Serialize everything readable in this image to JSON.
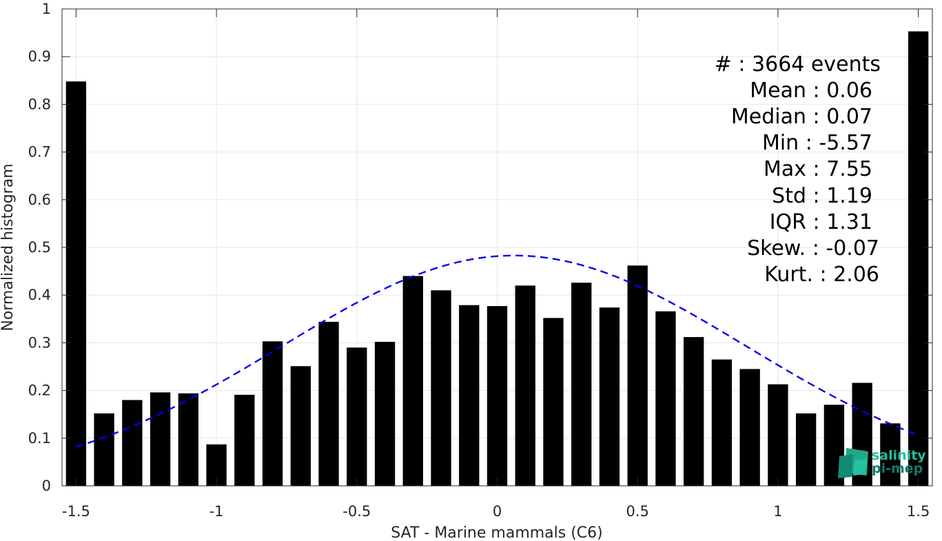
{
  "chart_data": {
    "type": "bar",
    "xlabel": "SAT - Marine mammals (C6)",
    "ylabel": "Normalized histogram",
    "xlim": [
      -1.55,
      1.55
    ],
    "ylim": [
      0,
      1
    ],
    "grid": true,
    "xticks": [
      -1.5,
      -1,
      -0.5,
      0,
      0.5,
      1,
      1.5
    ],
    "xtick_labels": [
      "-1.5",
      "-1",
      "-0.5",
      "0",
      "0.5",
      "1",
      "1.5"
    ],
    "yticks": [
      0,
      0.1,
      0.2,
      0.3,
      0.4,
      0.5,
      0.6,
      0.7,
      0.8,
      0.9,
      1
    ],
    "ytick_labels": [
      "0",
      "0.1",
      "0.2",
      "0.3",
      "0.4",
      "0.5",
      "0.6",
      "0.7",
      "0.8",
      "0.9",
      "1"
    ],
    "bar_color": "#000000",
    "x": [
      -1.5,
      -1.4,
      -1.3,
      -1.2,
      -1.1,
      -1.0,
      -0.9,
      -0.8,
      -0.7,
      -0.6,
      -0.5,
      -0.4,
      -0.3,
      -0.2,
      -0.1,
      0.0,
      0.1,
      0.2,
      0.3,
      0.4,
      0.5,
      0.6,
      0.7,
      0.8,
      0.9,
      1.0,
      1.1,
      1.2,
      1.3,
      1.4,
      1.5
    ],
    "values": [
      0.848,
      0.152,
      0.18,
      0.196,
      0.194,
      0.087,
      0.191,
      0.303,
      0.251,
      0.344,
      0.29,
      0.302,
      0.44,
      0.41,
      0.379,
      0.377,
      0.42,
      0.352,
      0.426,
      0.374,
      0.462,
      0.366,
      0.312,
      0.265,
      0.245,
      0.213,
      0.152,
      0.17,
      0.216,
      0.131,
      0.953
    ],
    "fit_curve": {
      "style": "dashed",
      "color": "#0000ee",
      "mean": 0.06,
      "std": 0.827,
      "peak": 0.483,
      "x_range": [
        -1.5,
        1.5
      ]
    },
    "annotations": [
      "#  : 3664 events",
      "Mean : 0.06",
      "Median : 0.07",
      "Min : -5.57",
      "Max : 7.55",
      "Std : 1.19",
      "IQR : 1.31",
      "Skew. : -0.07",
      "Kurt. : 2.06"
    ]
  },
  "logo": {
    "line1": "salinity",
    "line2": "pi-mep",
    "color1": "#1fbfa0",
    "color2": "#127a6a"
  }
}
